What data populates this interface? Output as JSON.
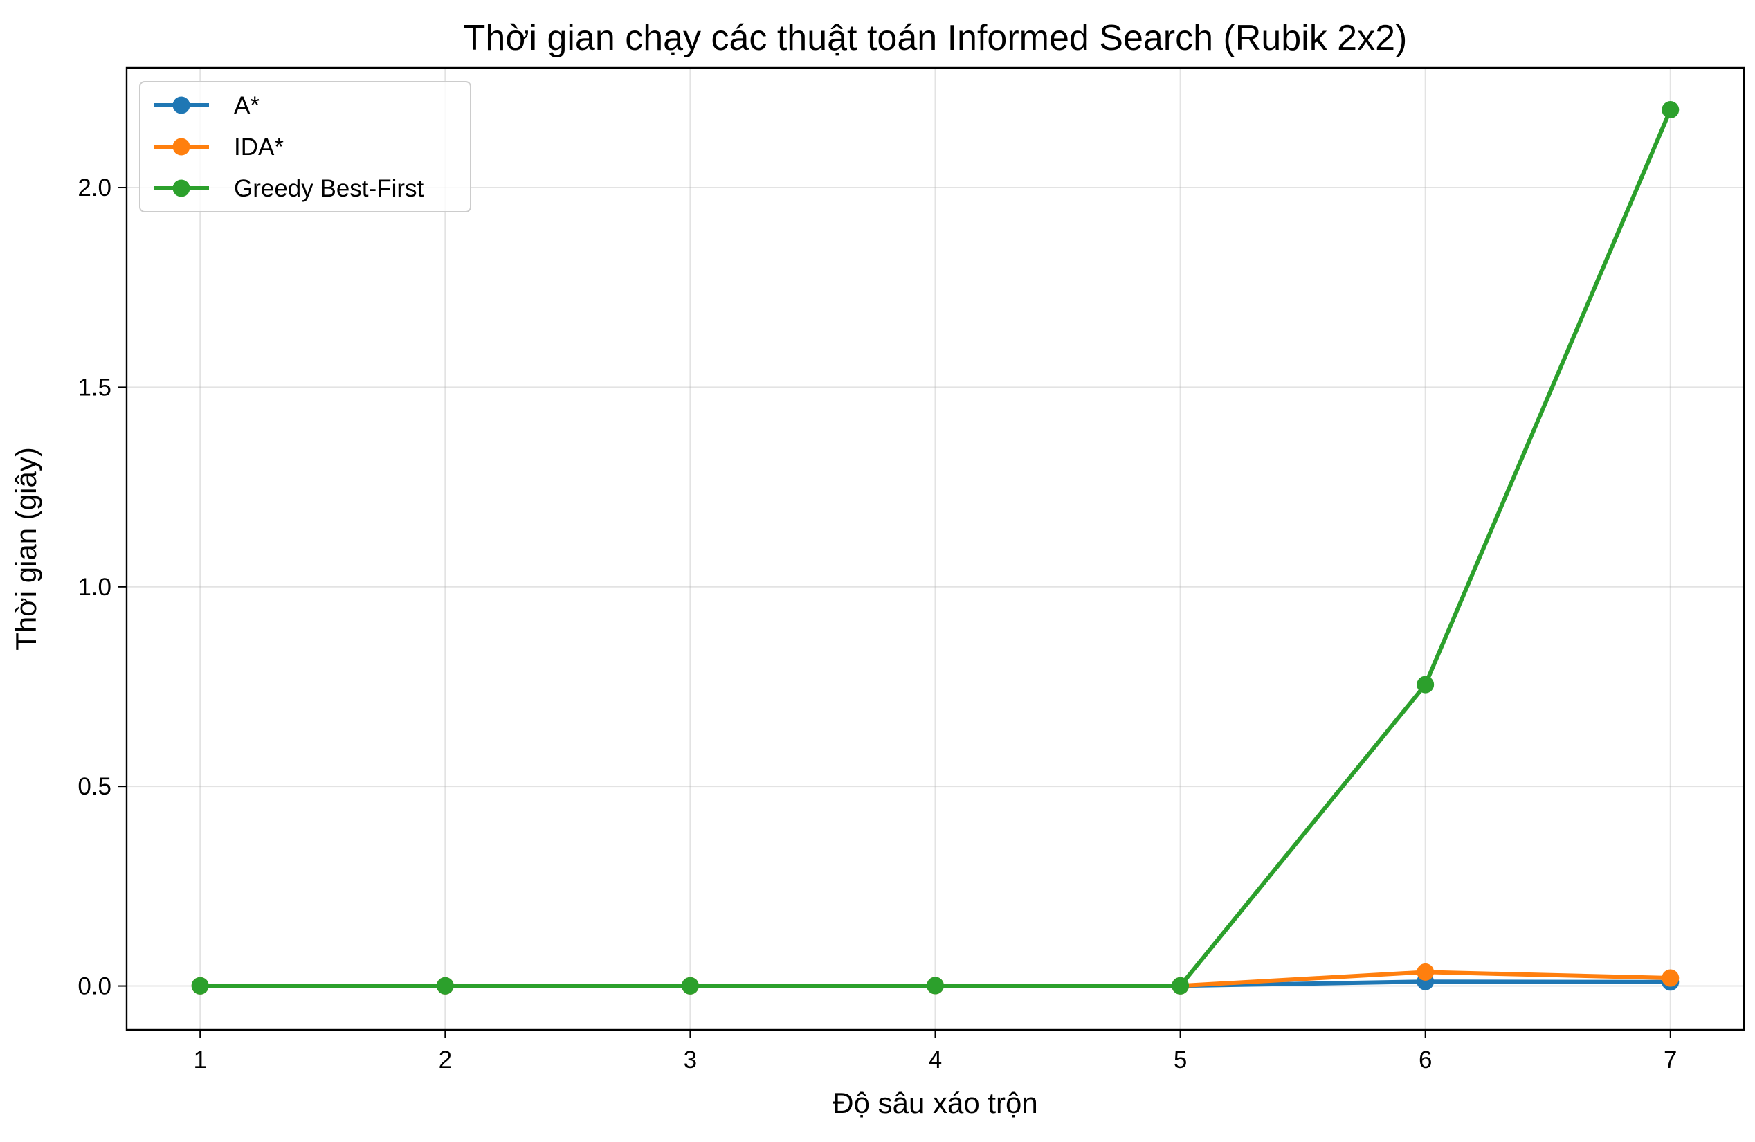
{
  "chart_data": {
    "type": "line",
    "title": "Thời gian chạy các thuật toán Informed Search (Rubik 2x2)",
    "xlabel": "Độ sâu xáo trộn",
    "ylabel": "Thời gian (giây)",
    "x": [
      1,
      2,
      3,
      4,
      5,
      6,
      7
    ],
    "xlim": [
      0.7,
      7.3
    ],
    "ylim": [
      -0.11,
      2.3
    ],
    "xticks": [
      "1",
      "2",
      "3",
      "4",
      "5",
      "6",
      "7"
    ],
    "yticks": [
      "0.0",
      "0.5",
      "1.0",
      "1.5",
      "2.0"
    ],
    "ytick_values": [
      0.0,
      0.5,
      1.0,
      1.5,
      2.0
    ],
    "grid": true,
    "legend_position": "top-left",
    "series": [
      {
        "name": "A*",
        "color": "#1f77b4",
        "values": [
          0.0005,
          0.0005,
          0.0005,
          0.001,
          0.0005,
          0.011,
          0.01
        ]
      },
      {
        "name": "IDA*",
        "color": "#ff7f0e",
        "values": [
          0.0005,
          0.0005,
          0.0005,
          0.001,
          0.0005,
          0.035,
          0.02
        ]
      },
      {
        "name": "Greedy Best-First",
        "color": "#2ca02c",
        "values": [
          0.0005,
          0.0005,
          0.0005,
          0.001,
          0.0005,
          0.755,
          2.195
        ]
      }
    ]
  }
}
